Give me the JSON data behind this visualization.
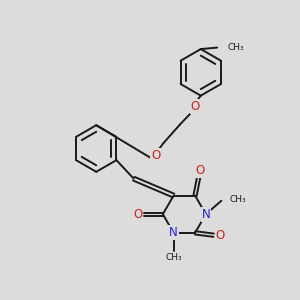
{
  "background_color": "#dcdcdc",
  "bond_color": "#1a1a1a",
  "bond_width": 1.4,
  "dbo": 0.055,
  "N_color": "#2222cc",
  "O_color": "#cc2222",
  "font_size": 8.0,
  "fig_width": 3.0,
  "fig_height": 3.0,
  "dpi": 100,
  "xlim": [
    0,
    10
  ],
  "ylim": [
    0,
    10
  ]
}
